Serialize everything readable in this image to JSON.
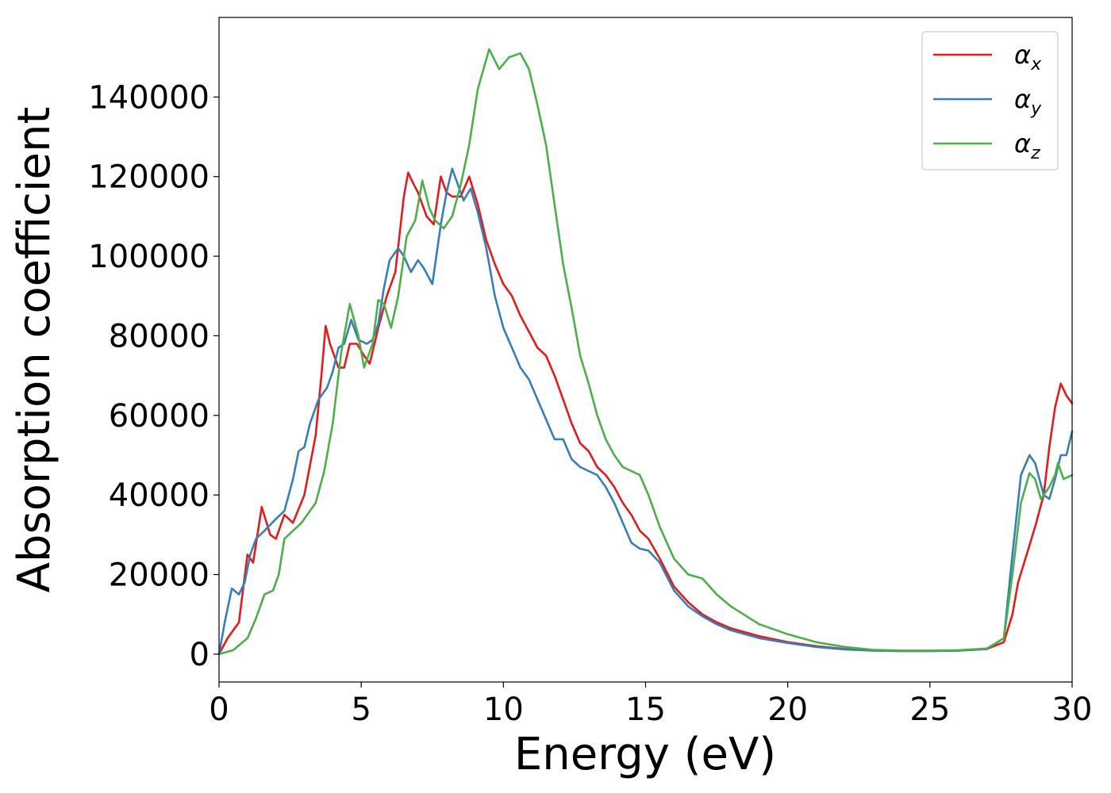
{
  "chart_data": {
    "type": "line",
    "xlabel": "Energy (eV)",
    "ylabel": "Absorption coefficient",
    "xlim": [
      0,
      30
    ],
    "ylim": [
      -7000,
      160000
    ],
    "xticks": [
      0,
      5,
      10,
      15,
      20,
      25,
      30
    ],
    "xtick_labels": [
      "0",
      "5",
      "10",
      "15",
      "20",
      "25",
      "30"
    ],
    "yticks": [
      0,
      20000,
      40000,
      60000,
      80000,
      100000,
      120000,
      140000
    ],
    "ytick_labels": [
      "0",
      "20000",
      "40000",
      "60000",
      "80000",
      "100000",
      "120000",
      "140000"
    ],
    "grid": false,
    "legend_position": "top-right",
    "series": [
      {
        "name": "α",
        "subscript": "x",
        "color": "#e41a1c",
        "points": [
          [
            0,
            0
          ],
          [
            0.3,
            4000
          ],
          [
            0.7,
            8000
          ],
          [
            1.0,
            25000
          ],
          [
            1.2,
            23000
          ],
          [
            1.5,
            37000
          ],
          [
            1.8,
            30000
          ],
          [
            2.0,
            29000
          ],
          [
            2.3,
            35000
          ],
          [
            2.6,
            33000
          ],
          [
            3.0,
            40000
          ],
          [
            3.4,
            55000
          ],
          [
            3.6,
            70000
          ],
          [
            3.75,
            82500
          ],
          [
            3.9,
            78000
          ],
          [
            4.2,
            72000
          ],
          [
            4.4,
            72000
          ],
          [
            4.6,
            78000
          ],
          [
            4.85,
            78000
          ],
          [
            5.1,
            75000
          ],
          [
            5.3,
            73000
          ],
          [
            5.6,
            82000
          ],
          [
            5.9,
            90000
          ],
          [
            6.2,
            96000
          ],
          [
            6.5,
            115000
          ],
          [
            6.65,
            121000
          ],
          [
            6.85,
            118000
          ],
          [
            7.0,
            116000
          ],
          [
            7.3,
            110000
          ],
          [
            7.55,
            108000
          ],
          [
            7.8,
            120000
          ],
          [
            8.0,
            116000
          ],
          [
            8.2,
            115000
          ],
          [
            8.5,
            115000
          ],
          [
            8.8,
            120000
          ],
          [
            9.1,
            113000
          ],
          [
            9.4,
            104000
          ],
          [
            9.7,
            98000
          ],
          [
            10.0,
            93000
          ],
          [
            10.3,
            90000
          ],
          [
            10.6,
            85000
          ],
          [
            10.9,
            81000
          ],
          [
            11.2,
            77000
          ],
          [
            11.5,
            75000
          ],
          [
            11.8,
            70000
          ],
          [
            12.1,
            64000
          ],
          [
            12.4,
            58000
          ],
          [
            12.7,
            53000
          ],
          [
            13.0,
            51000
          ],
          [
            13.3,
            47000
          ],
          [
            13.6,
            45000
          ],
          [
            13.9,
            42000
          ],
          [
            14.2,
            38000
          ],
          [
            14.5,
            35000
          ],
          [
            14.8,
            31000
          ],
          [
            15.1,
            29000
          ],
          [
            15.5,
            24000
          ],
          [
            16.0,
            17000
          ],
          [
            16.5,
            13000
          ],
          [
            17.0,
            10000
          ],
          [
            17.5,
            8000
          ],
          [
            18.0,
            6500
          ],
          [
            19.0,
            4500
          ],
          [
            20.0,
            3000
          ],
          [
            21.0,
            2000
          ],
          [
            22.0,
            1300
          ],
          [
            23.0,
            900
          ],
          [
            24.0,
            800
          ],
          [
            25.0,
            800
          ],
          [
            26.0,
            900
          ],
          [
            27.0,
            1300
          ],
          [
            27.6,
            3000
          ],
          [
            27.9,
            10000
          ],
          [
            28.1,
            18000
          ],
          [
            28.4,
            25000
          ],
          [
            28.7,
            32000
          ],
          [
            29.0,
            40000
          ],
          [
            29.2,
            52000
          ],
          [
            29.4,
            62000
          ],
          [
            29.6,
            68000
          ],
          [
            29.8,
            65000
          ],
          [
            30.0,
            63000
          ]
        ]
      },
      {
        "name": "α",
        "subscript": "y",
        "color": "#377eb8",
        "points": [
          [
            0,
            0
          ],
          [
            0.2,
            8000
          ],
          [
            0.45,
            16500
          ],
          [
            0.7,
            15000
          ],
          [
            0.9,
            18000
          ],
          [
            1.1,
            25000
          ],
          [
            1.3,
            29000
          ],
          [
            1.6,
            31000
          ],
          [
            2.0,
            34000
          ],
          [
            2.3,
            36000
          ],
          [
            2.6,
            44000
          ],
          [
            2.8,
            51000
          ],
          [
            3.0,
            52000
          ],
          [
            3.2,
            58000
          ],
          [
            3.5,
            64000
          ],
          [
            3.8,
            67000
          ],
          [
            4.0,
            71000
          ],
          [
            4.2,
            77000
          ],
          [
            4.4,
            78000
          ],
          [
            4.65,
            84000
          ],
          [
            4.9,
            79000
          ],
          [
            5.2,
            78000
          ],
          [
            5.4,
            79000
          ],
          [
            5.6,
            83000
          ],
          [
            5.8,
            92000
          ],
          [
            6.0,
            99000
          ],
          [
            6.3,
            102000
          ],
          [
            6.5,
            100000
          ],
          [
            6.75,
            96000
          ],
          [
            7.0,
            99000
          ],
          [
            7.2,
            97000
          ],
          [
            7.5,
            93000
          ],
          [
            7.8,
            108000
          ],
          [
            8.0,
            116000
          ],
          [
            8.2,
            122000
          ],
          [
            8.4,
            118000
          ],
          [
            8.6,
            114000
          ],
          [
            8.85,
            117000
          ],
          [
            9.1,
            111000
          ],
          [
            9.4,
            102000
          ],
          [
            9.7,
            90000
          ],
          [
            10.0,
            82000
          ],
          [
            10.3,
            77000
          ],
          [
            10.6,
            72000
          ],
          [
            10.9,
            69000
          ],
          [
            11.2,
            64000
          ],
          [
            11.5,
            59000
          ],
          [
            11.8,
            54000
          ],
          [
            12.1,
            54000
          ],
          [
            12.4,
            49000
          ],
          [
            12.7,
            47000
          ],
          [
            13.0,
            46000
          ],
          [
            13.3,
            45000
          ],
          [
            13.6,
            42000
          ],
          [
            13.9,
            38000
          ],
          [
            14.2,
            33000
          ],
          [
            14.5,
            28000
          ],
          [
            14.8,
            26500
          ],
          [
            15.1,
            26000
          ],
          [
            15.5,
            23000
          ],
          [
            16.0,
            16000
          ],
          [
            16.5,
            12000
          ],
          [
            17.0,
            9500
          ],
          [
            17.5,
            7500
          ],
          [
            18.0,
            6000
          ],
          [
            19.0,
            4000
          ],
          [
            20.0,
            2800
          ],
          [
            21.0,
            1800
          ],
          [
            22.0,
            1200
          ],
          [
            23.0,
            900
          ],
          [
            24.0,
            800
          ],
          [
            25.0,
            800
          ],
          [
            26.0,
            900
          ],
          [
            27.0,
            1300
          ],
          [
            27.6,
            4000
          ],
          [
            27.9,
            25000
          ],
          [
            28.2,
            45000
          ],
          [
            28.5,
            50000
          ],
          [
            28.7,
            48000
          ],
          [
            29.0,
            40000
          ],
          [
            29.2,
            39000
          ],
          [
            29.4,
            44000
          ],
          [
            29.6,
            50000
          ],
          [
            29.8,
            50000
          ],
          [
            30.0,
            56000
          ]
        ]
      },
      {
        "name": "α",
        "subscript": "z",
        "color": "#4daf4a",
        "points": [
          [
            0,
            0
          ],
          [
            0.5,
            1000
          ],
          [
            1.0,
            4000
          ],
          [
            1.3,
            9000
          ],
          [
            1.6,
            15000
          ],
          [
            1.9,
            16000
          ],
          [
            2.1,
            20000
          ],
          [
            2.3,
            29000
          ],
          [
            2.6,
            31000
          ],
          [
            2.9,
            33000
          ],
          [
            3.1,
            35000
          ],
          [
            3.4,
            38000
          ],
          [
            3.7,
            46000
          ],
          [
            4.0,
            58000
          ],
          [
            4.3,
            76000
          ],
          [
            4.6,
            88000
          ],
          [
            4.9,
            80000
          ],
          [
            5.1,
            72000
          ],
          [
            5.4,
            78000
          ],
          [
            5.6,
            89000
          ],
          [
            5.8,
            88000
          ],
          [
            6.05,
            82000
          ],
          [
            6.3,
            90000
          ],
          [
            6.6,
            105000
          ],
          [
            6.9,
            109000
          ],
          [
            7.15,
            119000
          ],
          [
            7.4,
            112000
          ],
          [
            7.6,
            109000
          ],
          [
            7.9,
            107000
          ],
          [
            8.2,
            110000
          ],
          [
            8.5,
            118000
          ],
          [
            8.8,
            128000
          ],
          [
            9.1,
            142000
          ],
          [
            9.5,
            152000
          ],
          [
            9.85,
            147000
          ],
          [
            10.2,
            150000
          ],
          [
            10.6,
            151000
          ],
          [
            10.9,
            147000
          ],
          [
            11.2,
            138000
          ],
          [
            11.5,
            128000
          ],
          [
            11.8,
            113000
          ],
          [
            12.1,
            98000
          ],
          [
            12.4,
            87000
          ],
          [
            12.7,
            75000
          ],
          [
            13.0,
            68000
          ],
          [
            13.3,
            60000
          ],
          [
            13.6,
            54000
          ],
          [
            13.9,
            50000
          ],
          [
            14.2,
            47000
          ],
          [
            14.5,
            46000
          ],
          [
            14.8,
            45000
          ],
          [
            15.1,
            40000
          ],
          [
            15.5,
            32000
          ],
          [
            16.0,
            24000
          ],
          [
            16.5,
            20000
          ],
          [
            17.0,
            19000
          ],
          [
            17.5,
            15000
          ],
          [
            18.0,
            12000
          ],
          [
            19.0,
            7500
          ],
          [
            20.0,
            5000
          ],
          [
            21.0,
            3000
          ],
          [
            22.0,
            1800
          ],
          [
            23.0,
            1100
          ],
          [
            24.0,
            900
          ],
          [
            25.0,
            900
          ],
          [
            26.0,
            1000
          ],
          [
            27.0,
            1400
          ],
          [
            27.6,
            4000
          ],
          [
            27.9,
            20000
          ],
          [
            28.2,
            38000
          ],
          [
            28.5,
            45500
          ],
          [
            28.7,
            44000
          ],
          [
            28.9,
            39000
          ],
          [
            29.2,
            42000
          ],
          [
            29.4,
            45000
          ],
          [
            29.5,
            48000
          ],
          [
            29.7,
            44000
          ],
          [
            30.0,
            45000
          ]
        ]
      }
    ]
  }
}
